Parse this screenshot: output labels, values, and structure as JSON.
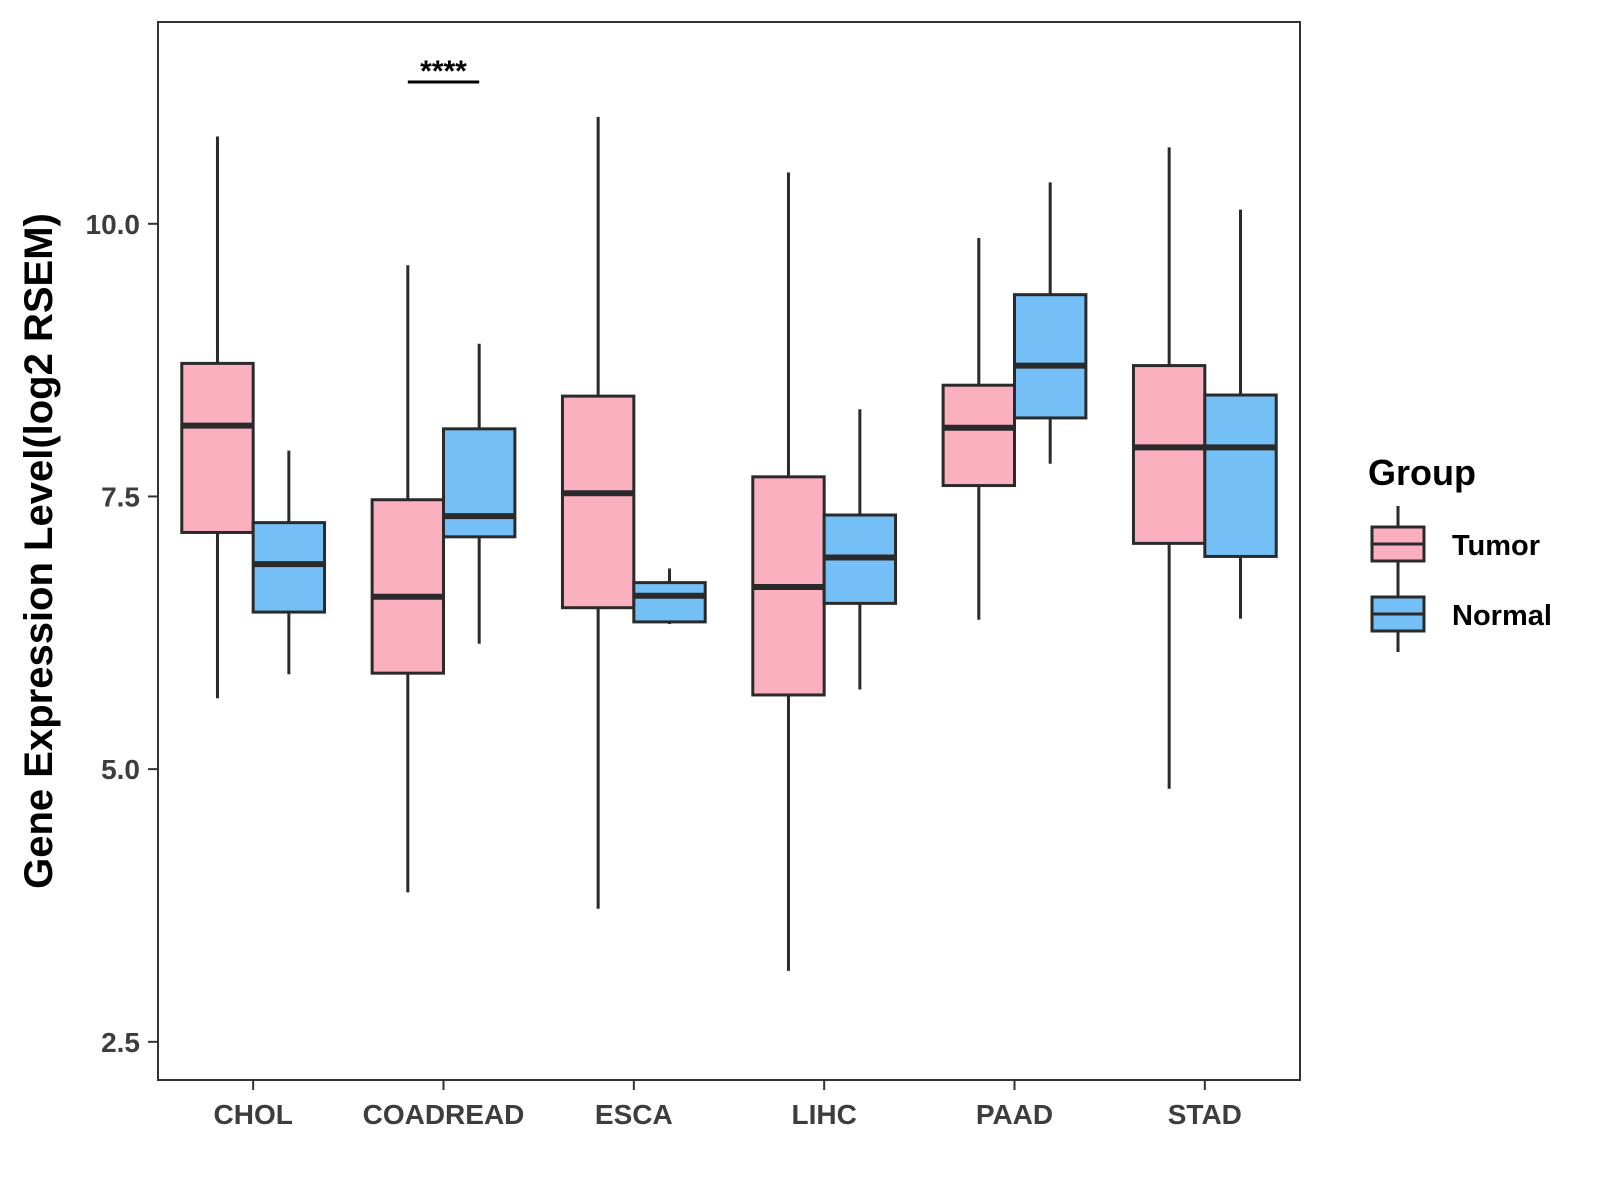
{
  "chart_data": {
    "type": "boxplot",
    "title": "",
    "xlabel": "",
    "ylabel": "Gene Expression Level(log2 RSEM)",
    "ylim": [
      2.15,
      11.85
    ],
    "yticks": [
      2.5,
      5.0,
      7.5,
      10.0
    ],
    "ytick_labels": [
      "2.5",
      "5.0",
      "7.5",
      "10.0"
    ],
    "categories": [
      "CHOL",
      "COADREAD",
      "ESCA",
      "LIHC",
      "PAAD",
      "STAD"
    ],
    "legend": {
      "title": "Group",
      "position": "right",
      "entries": [
        "Tumor",
        "Normal"
      ]
    },
    "series": [
      {
        "name": "Tumor",
        "color": "#fbb0c0",
        "boxes": [
          {
            "category": "CHOL",
            "min": 5.65,
            "q1": 7.17,
            "median": 8.15,
            "q3": 8.72,
            "max": 10.8
          },
          {
            "category": "COADREAD",
            "min": 3.87,
            "q1": 5.88,
            "median": 6.58,
            "q3": 7.47,
            "max": 9.62
          },
          {
            "category": "ESCA",
            "min": 3.72,
            "q1": 6.48,
            "median": 7.53,
            "q3": 8.42,
            "max": 10.98
          },
          {
            "category": "LIHC",
            "min": 3.15,
            "q1": 5.68,
            "median": 6.67,
            "q3": 7.68,
            "max": 10.47
          },
          {
            "category": "PAAD",
            "min": 6.37,
            "q1": 7.6,
            "median": 8.13,
            "q3": 8.52,
            "max": 9.87
          },
          {
            "category": "STAD",
            "min": 4.82,
            "q1": 7.07,
            "median": 7.95,
            "q3": 8.7,
            "max": 10.7
          }
        ]
      },
      {
        "name": "Normal",
        "color": "#74bff5",
        "boxes": [
          {
            "category": "CHOL",
            "min": 5.87,
            "q1": 6.44,
            "median": 6.88,
            "q3": 7.26,
            "max": 7.92
          },
          {
            "category": "COADREAD",
            "min": 6.15,
            "q1": 7.13,
            "median": 7.32,
            "q3": 8.12,
            "max": 8.9
          },
          {
            "category": "ESCA",
            "min": 6.33,
            "q1": 6.35,
            "median": 6.59,
            "q3": 6.71,
            "max": 6.84
          },
          {
            "category": "LIHC",
            "min": 5.73,
            "q1": 6.52,
            "median": 6.94,
            "q3": 7.33,
            "max": 8.3
          },
          {
            "category": "PAAD",
            "min": 7.8,
            "q1": 8.22,
            "median": 8.7,
            "q3": 9.35,
            "max": 10.38
          },
          {
            "category": "STAD",
            "min": 6.38,
            "q1": 6.95,
            "median": 7.95,
            "q3": 8.43,
            "max": 10.13
          }
        ]
      }
    ],
    "annotations": [
      {
        "category": "COADREAD",
        "text": "****",
        "y": 11.3
      }
    ]
  }
}
